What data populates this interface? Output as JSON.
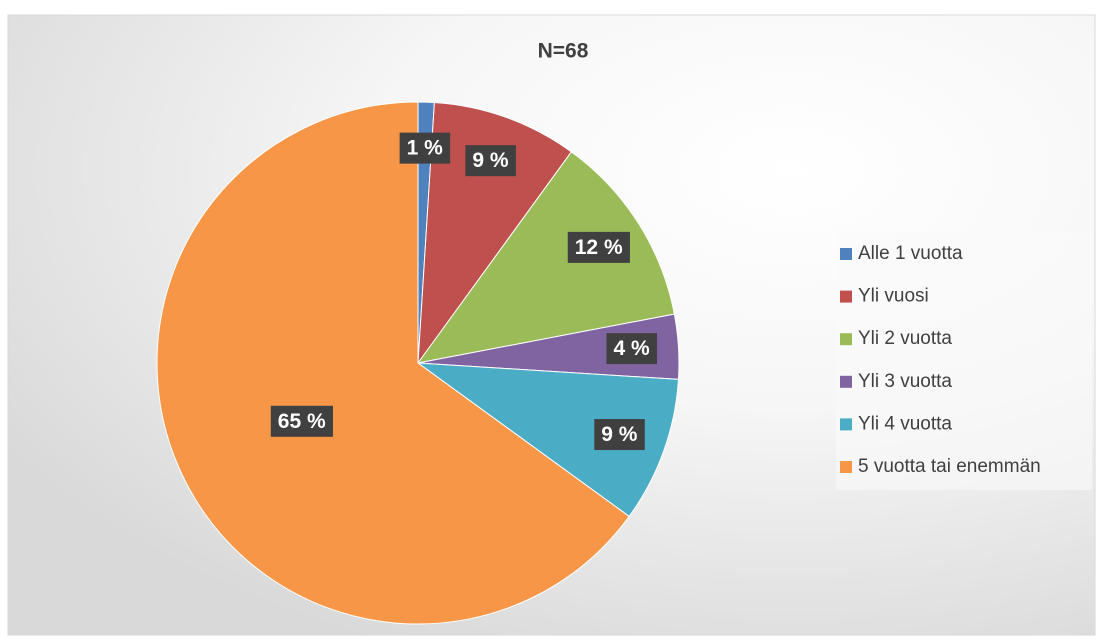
{
  "chart_data": {
    "type": "pie",
    "title": "N=68",
    "categories": [
      "Alle 1 vuotta",
      "Yli vuosi",
      "Yli 2 vuotta",
      "Yli 3 vuotta",
      "Yli 4 vuotta",
      "5 vuotta tai enemmän"
    ],
    "values": [
      1,
      9,
      12,
      4,
      9,
      65
    ],
    "value_labels": [
      "1 %",
      "9 %",
      "12 %",
      "4 %",
      "9 %",
      "65 %"
    ],
    "colors": [
      "#4f81bd",
      "#c0504d",
      "#9bbb59",
      "#8064a2",
      "#4bacc6",
      "#f79646"
    ],
    "legend": "right"
  }
}
